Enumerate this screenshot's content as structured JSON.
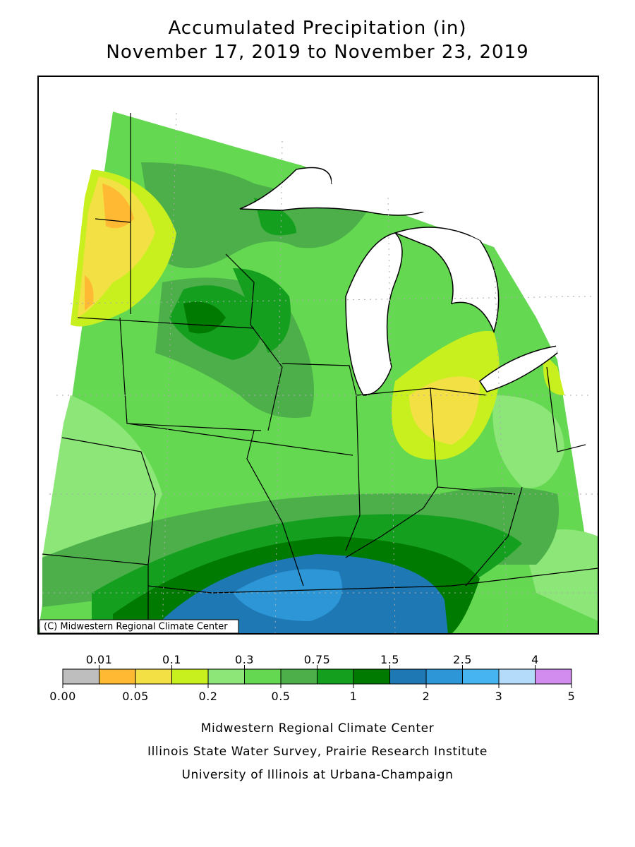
{
  "header": {
    "title": "Accumulated Precipitation (in)",
    "subtitle": "November 17, 2019 to November 23, 2019"
  },
  "map": {
    "credit": "(C) Midwestern Regional Climate Center"
  },
  "legend": {
    "colors": [
      "#bebebe",
      "#ffb932",
      "#f2e044",
      "#c8f01e",
      "#8ce678",
      "#64d850",
      "#4caf4a",
      "#14a01e",
      "#007a00",
      "#1e78b4",
      "#2d96d7",
      "#46b4f0",
      "#b4dcfa",
      "#d28cf0"
    ],
    "upper_labels": [
      "0.01",
      "0.1",
      "0.3",
      "0.75",
      "1.5",
      "2.5",
      "4"
    ],
    "lower_labels": [
      "0.00",
      "0.05",
      "0.2",
      "0.5",
      "1",
      "2",
      "3",
      "5"
    ]
  },
  "footer": {
    "lines": [
      "Midwestern Regional Climate Center",
      "Illinois State Water Survey, Prairie Research Institute",
      "University of Illinois at Urbana-Champaign"
    ]
  }
}
